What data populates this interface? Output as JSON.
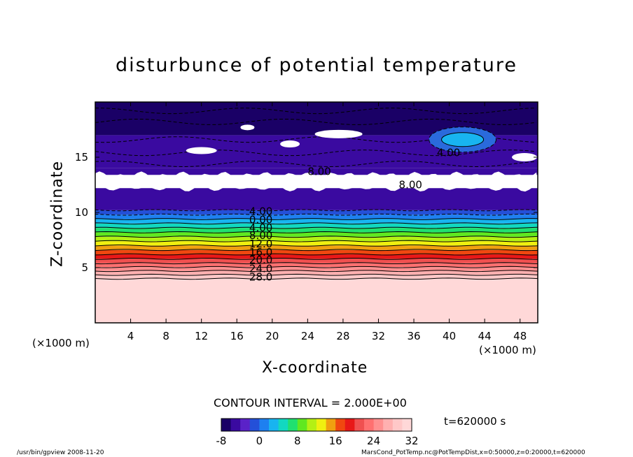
{
  "chart_data": {
    "type": "heatmap",
    "title": "disturbunce of potential temperature",
    "xlabel": "X-coordinate",
    "ylabel": "Z-coordinate",
    "x_unit_label": "(×1000 m)",
    "xlim": [
      0,
      50
    ],
    "ylim": [
      0,
      20
    ],
    "x_ticks": [
      4,
      8,
      12,
      16,
      20,
      24,
      28,
      32,
      36,
      40,
      44,
      48
    ],
    "y_ticks": [
      5,
      10,
      15
    ],
    "contour_interval_text": "CONTOUR INTERVAL = 2.000E+00",
    "colorbar": {
      "range": [
        -8,
        32
      ],
      "ticks": [
        -8,
        0,
        8,
        16,
        24,
        32
      ],
      "colors": [
        "#1a0066",
        "#3a0aa0",
        "#5a22c8",
        "#2450d8",
        "#1e80f0",
        "#18b4f0",
        "#12d8c0",
        "#20e070",
        "#60e820",
        "#b4f014",
        "#f0f010",
        "#f0a010",
        "#f04810",
        "#e81818",
        "#f05050",
        "#ff7070",
        "#ff9090",
        "#ffb0b0",
        "#ffc8c8",
        "#ffd8d8"
      ]
    },
    "contour_labels": [
      {
        "text": "4.00",
        "x": 17.4,
        "z": 10.1
      },
      {
        "text": "0.00",
        "x": 17.4,
        "z": 9.35
      },
      {
        "text": "4.00",
        "x": 17.4,
        "z": 8.6
      },
      {
        "text": "8.00",
        "x": 17.4,
        "z": 7.9
      },
      {
        "text": "12.0",
        "x": 17.4,
        "z": 7.15
      },
      {
        "text": "16.0",
        "x": 17.4,
        "z": 6.4
      },
      {
        "text": "20.0",
        "x": 17.4,
        "z": 5.7
      },
      {
        "text": "24.0",
        "x": 17.4,
        "z": 4.9
      },
      {
        "text": "28.0",
        "x": 17.4,
        "z": 4.15
      },
      {
        "text": "8.00",
        "x": 24.0,
        "z": 13.7
      },
      {
        "text": "8.00",
        "x": 34.3,
        "z": 12.5
      },
      {
        "text": "4.00",
        "x": 38.6,
        "z": 15.4
      }
    ],
    "bands": [
      {
        "z0": 0.0,
        "z1": 4.0,
        "value": 30
      },
      {
        "z0": 4.0,
        "z1": 4.35,
        "value": 28
      },
      {
        "z0": 4.35,
        "z1": 4.7,
        "value": 26
      },
      {
        "z0": 4.7,
        "z1": 5.05,
        "value": 24
      },
      {
        "z0": 5.05,
        "z1": 5.4,
        "value": 22
      },
      {
        "z0": 5.4,
        "z1": 5.8,
        "value": 20
      },
      {
        "z0": 5.8,
        "z1": 6.2,
        "value": 18
      },
      {
        "z0": 6.2,
        "z1": 6.6,
        "value": 16
      },
      {
        "z0": 6.6,
        "z1": 7.0,
        "value": 14
      },
      {
        "z0": 7.0,
        "z1": 7.4,
        "value": 12
      },
      {
        "z0": 7.4,
        "z1": 7.8,
        "value": 10
      },
      {
        "z0": 7.8,
        "z1": 8.2,
        "value": 8
      },
      {
        "z0": 8.2,
        "z1": 8.6,
        "value": 6
      },
      {
        "z0": 8.6,
        "z1": 9.0,
        "value": 4
      },
      {
        "z0": 9.0,
        "z1": 9.4,
        "value": 2
      },
      {
        "z0": 9.4,
        "z1": 9.8,
        "value": 0
      },
      {
        "z0": 9.8,
        "z1": 10.2,
        "value": -2
      },
      {
        "z0": 10.2,
        "z1": 12.2,
        "value": -5
      },
      {
        "z0": 13.4,
        "z1": 14.0,
        "value": -5
      },
      {
        "z0": 14.0,
        "z1": 17.0,
        "value": -6
      },
      {
        "z0": 17.0,
        "z1": 20.0,
        "value": -7
      }
    ],
    "white_band": {
      "z0": 12.2,
      "z1": 13.4
    }
  },
  "time_label": "t=620000 s",
  "footer_left": "/usr/bin/gpview   2008-11-20",
  "footer_right": "MarsCond_PotTemp.nc@PotTempDist,x=0:50000,z=0:20000,t=620000"
}
